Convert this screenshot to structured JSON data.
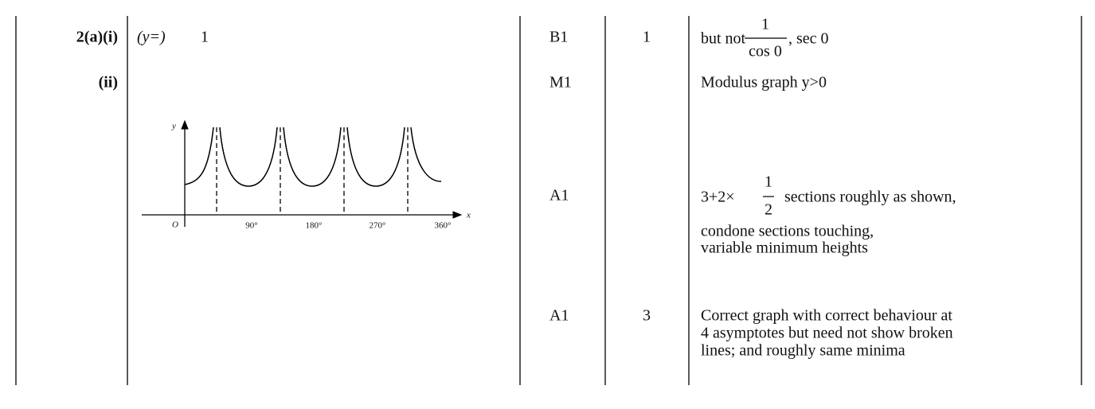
{
  "q_2a_i": {
    "label": "2(a)(i)",
    "answer_prefix": "(y=)",
    "answer": "1",
    "mark": "B1",
    "marks_total": "1",
    "guidance": {
      "before": "but not",
      "numerator": "1",
      "denominator": "cos 0",
      "after": ", sec 0"
    }
  },
  "q_2a_ii": {
    "label": "(ii)",
    "graph": {
      "y_label": "y",
      "x_label": "x",
      "origin": "O",
      "x_ticks": [
        "90°",
        "180°",
        "270°",
        "360°"
      ]
    },
    "marks": [
      {
        "mark": "M1",
        "guidance": "Modulus graph  y>0"
      },
      {
        "mark": "A1",
        "guidance": {
          "before": "3+2×",
          "numerator": "1",
          "denominator": "2",
          "after": "sections roughly as shown,",
          "lines": [
            "condone sections touching,",
            "variable minimum heights"
          ]
        }
      },
      {
        "mark": "A1",
        "marks_total": "3",
        "guidance_lines": [
          "Correct graph with correct behaviour at",
          "4 asymptotes but need not show broken",
          "lines; and roughly same minima"
        ]
      }
    ]
  }
}
